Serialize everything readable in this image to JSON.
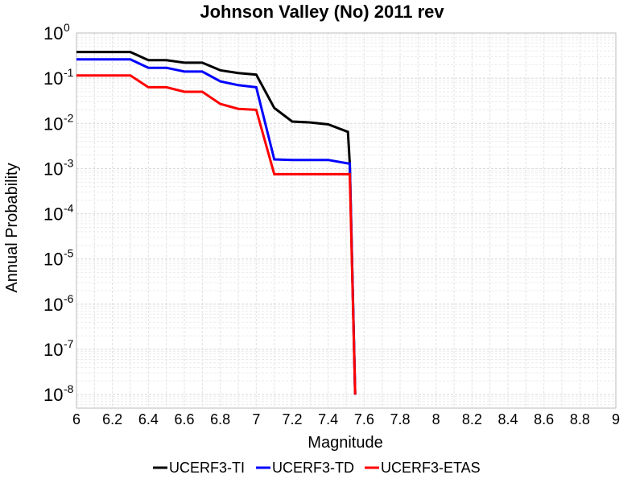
{
  "chart_data": {
    "type": "line",
    "title": "Johnson Valley (No) 2011 rev",
    "xlabel": "Magnitude",
    "ylabel": "Annual Probability",
    "xlim": [
      6,
      9
    ],
    "ylim_exponent": [
      -8.3,
      0
    ],
    "y_scale": "log",
    "grid": true,
    "legend_placement": "bottom",
    "x_ticks": [
      "6",
      "6.2",
      "6.4",
      "6.6",
      "6.8",
      "7",
      "7.2",
      "7.4",
      "7.6",
      "7.8",
      "8",
      "8.2",
      "8.4",
      "8.6",
      "8.8",
      "9"
    ],
    "y_ticks": [
      {
        "base": "10",
        "exp": "0"
      },
      {
        "base": "10",
        "exp": "-1"
      },
      {
        "base": "10",
        "exp": "-2"
      },
      {
        "base": "10",
        "exp": "-3"
      },
      {
        "base": "10",
        "exp": "-4"
      },
      {
        "base": "10",
        "exp": "-5"
      },
      {
        "base": "10",
        "exp": "-6"
      },
      {
        "base": "10",
        "exp": "-7"
      },
      {
        "base": "10",
        "exp": "-8"
      }
    ],
    "series": [
      {
        "name": "UCERF3-TI",
        "color": "#000000",
        "x": [
          6.0,
          6.1,
          6.2,
          6.3,
          6.4,
          6.5,
          6.6,
          6.7,
          6.8,
          6.9,
          7.0,
          7.1,
          7.2,
          7.3,
          7.4,
          7.51,
          7.52,
          7.55
        ],
        "y": [
          0.38,
          0.38,
          0.38,
          0.38,
          0.25,
          0.25,
          0.22,
          0.22,
          0.15,
          0.13,
          0.12,
          0.022,
          0.011,
          0.0105,
          0.0095,
          0.0065,
          0.0013,
          1e-08
        ]
      },
      {
        "name": "UCERF3-TD",
        "color": "#0000ff",
        "x": [
          6.0,
          6.1,
          6.2,
          6.3,
          6.4,
          6.5,
          6.6,
          6.7,
          6.8,
          6.9,
          7.0,
          7.1,
          7.2,
          7.3,
          7.4,
          7.51,
          7.52,
          7.55
        ],
        "y": [
          0.26,
          0.26,
          0.26,
          0.26,
          0.17,
          0.17,
          0.14,
          0.14,
          0.085,
          0.07,
          0.063,
          0.0016,
          0.00155,
          0.00155,
          0.00155,
          0.0013,
          0.0013,
          1e-08
        ]
      },
      {
        "name": "UCERF3-ETAS",
        "color": "#ff0000",
        "x": [
          6.0,
          6.1,
          6.2,
          6.3,
          6.4,
          6.5,
          6.6,
          6.7,
          6.8,
          6.9,
          7.0,
          7.1,
          7.2,
          7.3,
          7.4,
          7.51,
          7.52,
          7.55
        ],
        "y": [
          0.115,
          0.115,
          0.115,
          0.115,
          0.063,
          0.063,
          0.05,
          0.05,
          0.027,
          0.021,
          0.02,
          0.00075,
          0.00075,
          0.00075,
          0.00075,
          0.00075,
          0.00075,
          1e-08
        ]
      }
    ]
  }
}
